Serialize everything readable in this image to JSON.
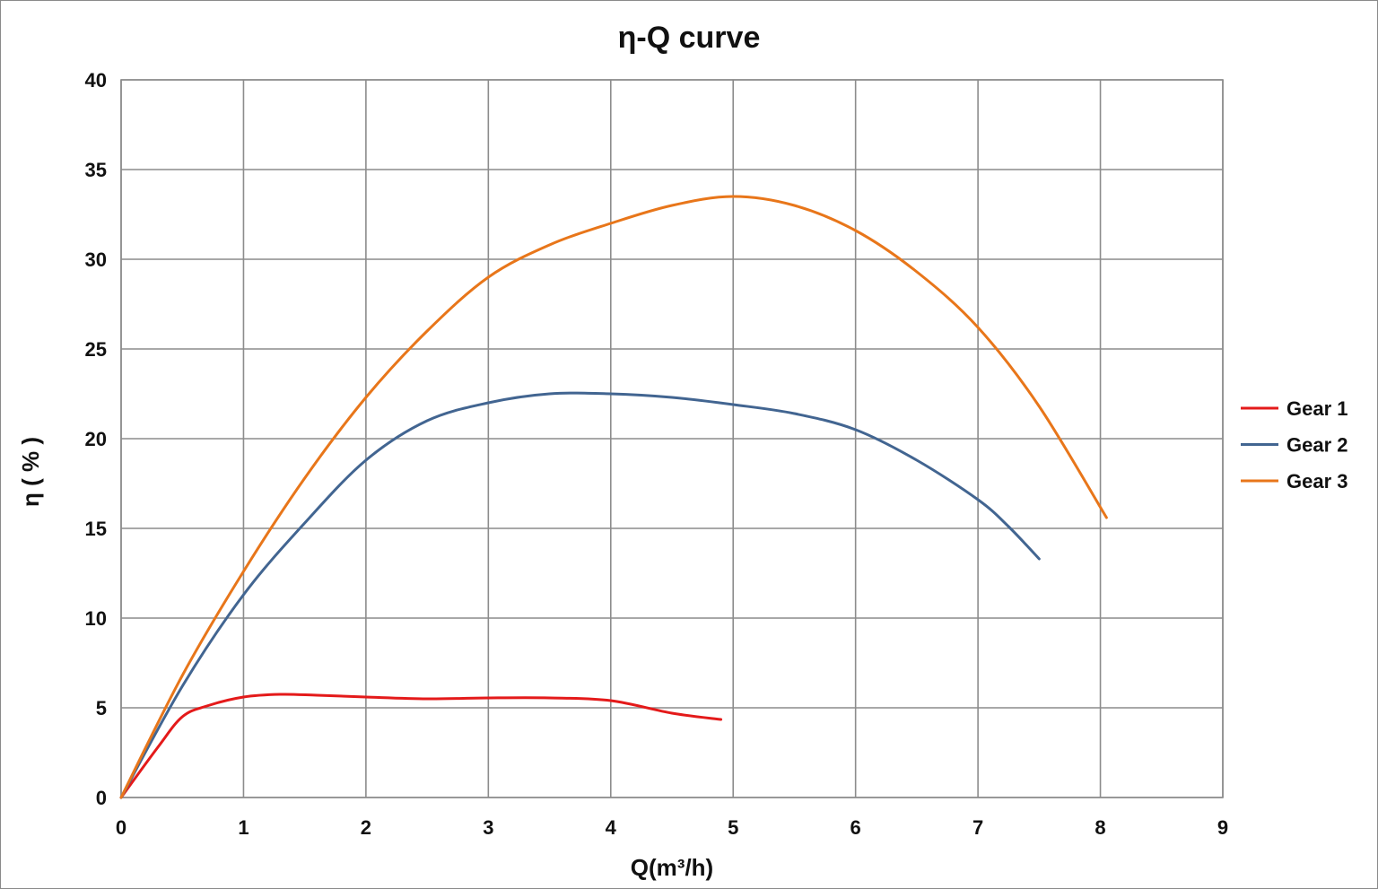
{
  "chart_data": {
    "type": "line",
    "title": "η-Q  curve",
    "xlabel": "Q(m³/h)",
    "ylabel": "η ( % )",
    "xlim": [
      0,
      9
    ],
    "ylim": [
      0,
      40
    ],
    "x_ticks": [
      "0",
      "1",
      "2",
      "3",
      "4",
      "5",
      "6",
      "7",
      "8",
      "9"
    ],
    "y_ticks": [
      "0",
      "5",
      "10",
      "15",
      "20",
      "25",
      "30",
      "35",
      "40"
    ],
    "grid": true,
    "legend_position": "right",
    "series": [
      {
        "name": "Gear 1",
        "color": "#e41a1a",
        "x": [
          0,
          0.3,
          0.5,
          0.7,
          1,
          1.3,
          1.6,
          2,
          2.5,
          3,
          3.5,
          4,
          4.5,
          4.9
        ],
        "y": [
          0,
          2.8,
          4.5,
          5.1,
          5.6,
          5.75,
          5.7,
          5.6,
          5.5,
          5.55,
          5.55,
          5.4,
          4.7,
          4.35
        ]
      },
      {
        "name": "Gear 2",
        "color": "#426591",
        "x": [
          0,
          0.5,
          1,
          1.5,
          2,
          2.5,
          3,
          3.5,
          4,
          4.5,
          5,
          5.5,
          6,
          6.5,
          7,
          7.25,
          7.5
        ],
        "y": [
          0,
          6.2,
          11.3,
          15.3,
          18.8,
          21.0,
          22.0,
          22.5,
          22.5,
          22.3,
          21.9,
          21.4,
          20.5,
          18.8,
          16.6,
          15.1,
          13.3
        ]
      },
      {
        "name": "Gear 3",
        "color": "#e8761a",
        "x": [
          0,
          0.5,
          1,
          1.5,
          2,
          2.5,
          3,
          3.5,
          4,
          4.5,
          5,
          5.5,
          6,
          6.5,
          7,
          7.5,
          8.05
        ],
        "y": [
          0,
          6.8,
          12.6,
          17.8,
          22.3,
          26.0,
          29.0,
          30.8,
          32.0,
          33.0,
          33.5,
          33.0,
          31.6,
          29.3,
          26.2,
          21.8,
          15.6
        ]
      }
    ]
  }
}
